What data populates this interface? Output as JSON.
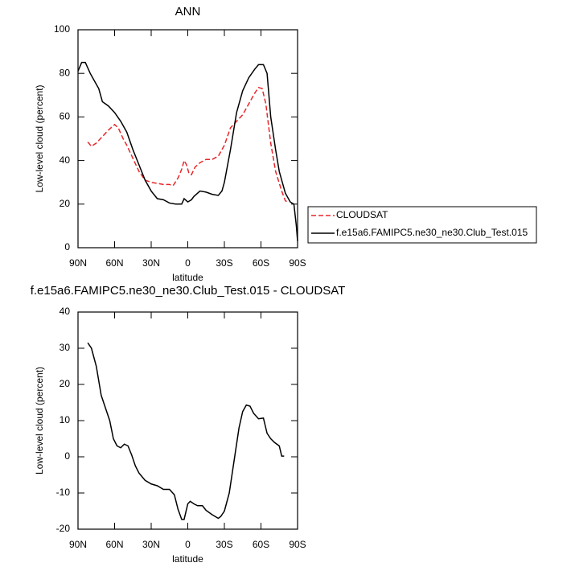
{
  "chart_data": [
    {
      "type": "line",
      "title": "ANN",
      "x_label": "latitude",
      "y_label": "Low-level cloud (percent)",
      "xlim": [
        90,
        -90
      ],
      "xticks": [
        {
          "value": 90,
          "label": "90N"
        },
        {
          "value": 60,
          "label": "60N"
        },
        {
          "value": 30,
          "label": "30N"
        },
        0,
        {
          "value": -30,
          "label": "30S"
        },
        {
          "value": -60,
          "label": "60S"
        },
        {
          "value": -90,
          "label": "90S"
        }
      ],
      "ylim": [
        0,
        100
      ],
      "yticks": [
        0,
        20,
        40,
        60,
        80,
        100
      ],
      "legend": "right",
      "series": [
        {
          "name": "CLOUDSAT",
          "color": "#e8262a",
          "line_style": "dashed",
          "x": [
            82,
            79,
            75,
            70,
            65,
            60,
            57,
            53,
            50,
            45,
            40,
            35,
            30,
            25,
            20,
            15,
            12,
            8,
            5,
            3,
            1,
            -1,
            -3,
            -6,
            -10,
            -15,
            -20,
            -25,
            -30,
            -35,
            -40,
            -45,
            -50,
            -55,
            -58,
            -61,
            -64,
            -68,
            -72,
            -77,
            -80,
            -82
          ],
          "values": [
            48.5,
            46.5,
            48,
            51,
            54,
            56.5,
            55,
            50,
            47,
            41,
            35,
            31,
            30,
            29.5,
            29,
            29,
            28.5,
            32,
            36,
            40,
            38,
            34,
            33.5,
            37,
            39,
            40.5,
            40.5,
            42,
            47,
            55,
            58,
            61,
            66,
            71,
            73.5,
            73,
            66,
            48,
            35,
            26,
            21.5,
            21
          ]
        },
        {
          "name": "f.e15a6.FAMIPC5.ne30_ne30.Club_Test.015",
          "color": "#000000",
          "line_style": "solid",
          "x": [
            90,
            87,
            84,
            80,
            77,
            73,
            70,
            65,
            60,
            55,
            50,
            45,
            40,
            35,
            30,
            25,
            20,
            15,
            10,
            5,
            3,
            0,
            -3,
            -5,
            -10,
            -15,
            -20,
            -25,
            -28,
            -30,
            -35,
            -40,
            -45,
            -50,
            -55,
            -58,
            -62,
            -65,
            -68,
            -72,
            -75,
            -80,
            -84,
            -87,
            -89,
            -90
          ],
          "values": [
            81,
            85,
            85,
            80,
            77,
            73,
            67,
            65,
            62,
            58,
            53,
            45,
            38,
            31,
            26,
            22.5,
            22,
            20.5,
            20,
            20,
            22.5,
            21,
            22,
            23.5,
            26,
            25.5,
            24.5,
            24,
            26,
            30,
            45,
            62,
            72,
            78,
            82,
            84,
            84,
            80,
            60,
            45,
            35,
            25,
            21,
            20,
            10,
            3
          ]
        }
      ]
    },
    {
      "type": "line",
      "title": "f.e15a6.FAMIPC5.ne30_ne30.Club_Test.015 - CLOUDSAT",
      "x_label": "latitude",
      "y_label": "Low-level cloud (percent)",
      "xlim": [
        90,
        -90
      ],
      "xticks": [
        {
          "value": 90,
          "label": "90N"
        },
        {
          "value": 60,
          "label": "60N"
        },
        {
          "value": 30,
          "label": "30N"
        },
        0,
        {
          "value": -30,
          "label": "30S"
        },
        {
          "value": -60,
          "label": "60S"
        },
        {
          "value": -90,
          "label": "90S"
        }
      ],
      "ylim": [
        -20,
        40
      ],
      "yticks": [
        -20,
        -10,
        0,
        10,
        20,
        30,
        40
      ],
      "series": [
        {
          "color": "#000000",
          "line_style": "solid",
          "x": [
            82,
            79,
            75,
            71,
            67,
            64,
            61,
            58,
            55,
            52,
            49,
            46,
            43,
            40,
            35,
            30,
            25,
            20,
            15,
            11,
            8,
            5,
            3,
            0,
            -2,
            -5,
            -8,
            -12,
            -15,
            -20,
            -25,
            -27,
            -30,
            -34,
            -38,
            -42,
            -45,
            -48,
            -51,
            -54,
            -58,
            -62,
            -65,
            -68,
            -71,
            -75,
            -77,
            -79
          ],
          "values": [
            31.5,
            30,
            25,
            17,
            13,
            10,
            5,
            3,
            2.5,
            3.5,
            3,
            0.5,
            -2.5,
            -4.5,
            -6.5,
            -7.5,
            -8,
            -9,
            -9,
            -10.5,
            -14.5,
            -17.3,
            -17.3,
            -13,
            -12.3,
            -13,
            -13.5,
            -13.5,
            -14.8,
            -16,
            -17,
            -16.5,
            -15,
            -10,
            -1,
            8,
            12.5,
            14.3,
            14,
            12,
            10.5,
            10.7,
            6.5,
            5,
            4,
            3,
            0.2,
            0.2
          ]
        }
      ]
    }
  ]
}
